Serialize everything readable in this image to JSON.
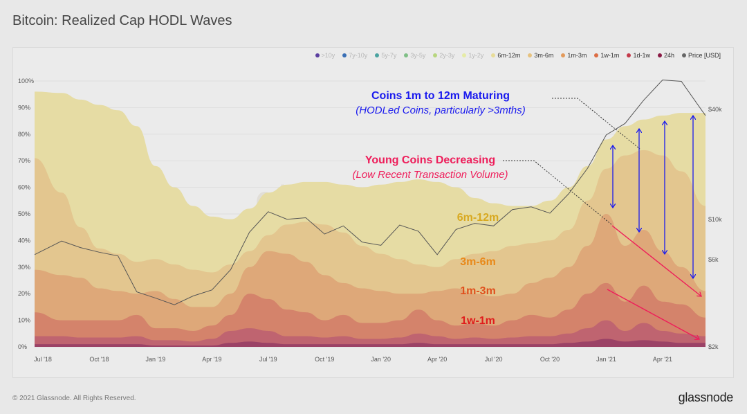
{
  "header": {
    "title": "Bitcoin: Realized Cap HODL Waves"
  },
  "legend": [
    {
      "label": ">10y",
      "color": "#5b3fa0",
      "active": false
    },
    {
      "label": "7y-10y",
      "color": "#3a6fb5",
      "active": false
    },
    {
      "label": "5y-7y",
      "color": "#4aa3a0",
      "active": false
    },
    {
      "label": "3y-5y",
      "color": "#7fbf86",
      "active": false
    },
    {
      "label": "2y-3y",
      "color": "#b7d67f",
      "active": false
    },
    {
      "label": "1y-2y",
      "color": "#e5eba6",
      "active": false
    },
    {
      "label": "6m-12m",
      "color": "#e8dc98",
      "active": true
    },
    {
      "label": "3m-6m",
      "color": "#e6c27f",
      "active": true
    },
    {
      "label": "1m-3m",
      "color": "#e39a5b",
      "active": true
    },
    {
      "label": "1w-1m",
      "color": "#dc6d44",
      "active": true
    },
    {
      "label": "1d-1w",
      "color": "#c43a4a",
      "active": true
    },
    {
      "label": "24h",
      "color": "#8a1a45",
      "active": true
    },
    {
      "label": "Price [USD]",
      "color": "#666666",
      "active": true
    }
  ],
  "chart_data": {
    "type": "area",
    "stacked": true,
    "title": "Bitcoin: Realized Cap HODL Waves",
    "x": [
      "2018-06-18",
      "2018-08-01",
      "2018-09-01",
      "2018-10-01",
      "2018-11-01",
      "2018-12-01",
      "2019-01-01",
      "2019-02-01",
      "2019-03-01",
      "2019-04-01",
      "2019-05-01",
      "2019-06-01",
      "2019-07-01",
      "2019-08-01",
      "2019-09-01",
      "2019-10-01",
      "2019-11-01",
      "2019-12-01",
      "2020-01-01",
      "2020-02-01",
      "2020-03-01",
      "2020-04-01",
      "2020-05-01",
      "2020-06-01",
      "2020-07-01",
      "2020-08-01",
      "2020-09-01",
      "2020-10-01",
      "2020-11-01",
      "2020-12-01",
      "2021-01-01",
      "2021-02-01",
      "2021-03-01",
      "2021-04-01",
      "2021-05-01",
      "2021-06-10"
    ],
    "x_ticks": [
      "Jul '18",
      "Oct '18",
      "Jan '19",
      "Apr '19",
      "Jul '19",
      "Oct '19",
      "Jan '20",
      "Apr '20",
      "Jul '20",
      "Oct '20",
      "Jan '21",
      "Apr '21"
    ],
    "x_tick_dates": [
      "2018-07-01",
      "2018-10-01",
      "2019-01-01",
      "2019-04-01",
      "2019-07-01",
      "2019-10-01",
      "2020-01-01",
      "2020-04-01",
      "2020-07-01",
      "2020-10-01",
      "2021-01-01",
      "2021-04-01"
    ],
    "y_ticks": [
      "0%",
      "10%",
      "20%",
      "30%",
      "40%",
      "50%",
      "60%",
      "70%",
      "80%",
      "90%",
      "100%"
    ],
    "ylim": [
      0,
      100
    ],
    "y2_ticks": [
      {
        "label": "$2k",
        "value": 2000
      },
      {
        "label": "$6k",
        "value": 6000
      },
      {
        "label": "$10k",
        "value": 10000
      },
      {
        "label": "$40k",
        "value": 40000
      }
    ],
    "y2_scale": "log",
    "grid": true,
    "legend_position": "top-right",
    "series": [
      {
        "name": "24h",
        "color": "#9b4266",
        "values": [
          1,
          1,
          1,
          1,
          1,
          1,
          0.5,
          0.5,
          0.5,
          0.5,
          1.5,
          2,
          1.5,
          1,
          1,
          1,
          1,
          1,
          1,
          1,
          1.5,
          1,
          1,
          1,
          1,
          1,
          1,
          1,
          1.5,
          2,
          3,
          2,
          2.5,
          2,
          1.5,
          1.5
        ]
      },
      {
        "name": "1d-1w",
        "color": "#bf6470",
        "values": [
          3,
          3,
          2.5,
          2.5,
          2.5,
          3,
          2,
          2,
          1.5,
          2.5,
          4.5,
          5,
          4.5,
          3,
          3,
          2.5,
          3,
          2,
          2,
          2.5,
          3.5,
          3,
          2,
          2.5,
          2,
          2.5,
          3,
          3,
          3.5,
          5,
          7,
          4,
          6.5,
          4,
          3.5,
          2.5
        ]
      },
      {
        "name": "1w-1m",
        "color": "#d4836b",
        "values": [
          9,
          6,
          6.5,
          6.5,
          6.5,
          8,
          4.5,
          4.5,
          4,
          5,
          6,
          13,
          12,
          10,
          9,
          6.5,
          8,
          6,
          6,
          6.5,
          9,
          6,
          5,
          5.5,
          5,
          6.5,
          8,
          7,
          9,
          13,
          14,
          11,
          14,
          11,
          11,
          7
        ]
      },
      {
        "name": "1m-3m",
        "color": "#dea879",
        "values": [
          16,
          17,
          16,
          12,
          11,
          8,
          14,
          11,
          9,
          7,
          8,
          10,
          18,
          21,
          19,
          17,
          12,
          13,
          12,
          10,
          6,
          11,
          14,
          11,
          11,
          10,
          12,
          15,
          16,
          18,
          26,
          21,
          21,
          19,
          14,
          10
        ]
      },
      {
        "name": "3m-6m",
        "color": "#e3c68f",
        "values": [
          42,
          31,
          19,
          15,
          14,
          12,
          12,
          13,
          14,
          13,
          11,
          6,
          6,
          11,
          15,
          19,
          19,
          16,
          14,
          13,
          11,
          9,
          11,
          15,
          17,
          18,
          15,
          14,
          14,
          17,
          17,
          34,
          30,
          36,
          36,
          32
        ]
      },
      {
        "name": "6m-12m",
        "color": "#e6dca4",
        "values": [
          25,
          37.5,
          48,
          54,
          54,
          51,
          35,
          29,
          24,
          21,
          17,
          16,
          16,
          15,
          15,
          16,
          18,
          22,
          26,
          29,
          32,
          32,
          27,
          21,
          18,
          15,
          14,
          15,
          16,
          13,
          11,
          11,
          11.5,
          15,
          22,
          35
        ]
      }
    ],
    "price": {
      "name": "Price [USD]",
      "color": "#555555",
      "values": [
        6400,
        7600,
        7000,
        6600,
        6300,
        4000,
        3700,
        3400,
        3800,
        4100,
        5300,
        8500,
        11000,
        10000,
        10200,
        8300,
        9200,
        7500,
        7200,
        9300,
        8600,
        6400,
        8800,
        9500,
        9200,
        11300,
        11700,
        10800,
        13800,
        19000,
        29000,
        33500,
        45000,
        58000,
        57000,
        37000
      ]
    },
    "annotations": {
      "maturing_title": "Coins 1m to 12m Maturing",
      "maturing_sub": "(HODLed Coins, particularly >3mths)",
      "young_title": "Young Coins Decreasing",
      "young_sub": "(Low Recent Transaction Volume)",
      "band_labels": [
        {
          "text": "6m-12m",
          "color": "#d8a920"
        },
        {
          "text": "3m-6m",
          "color": "#e8891a"
        },
        {
          "text": "1m-3m",
          "color": "#e0501e"
        },
        {
          "text": "1w-1m",
          "color": "#e01c1c"
        }
      ],
      "maturing_color": "#1a1aee",
      "young_color": "#ee1d5a"
    },
    "watermark": "glassnode"
  },
  "footer": {
    "copyright": "© 2021 Glassnode. All Rights Reserved.",
    "brand": "glassnode"
  }
}
